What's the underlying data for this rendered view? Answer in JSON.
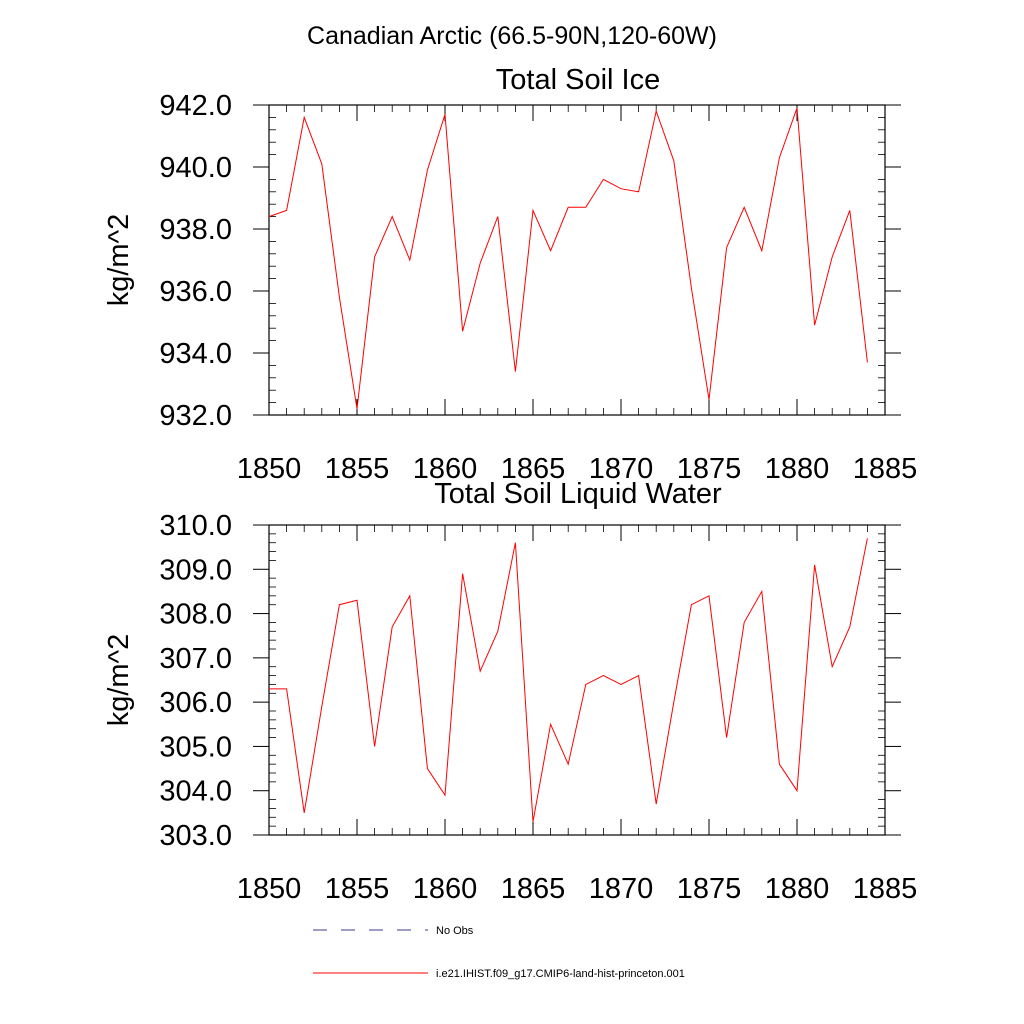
{
  "page_title": "Canadian Arctic (66.5-90N,120-60W)",
  "colors": {
    "model_line": "#ff0000",
    "obs_line": "#3b3b8f",
    "axis": "#000000"
  },
  "legend": {
    "entries": [
      {
        "label": "No Obs",
        "style": "dashed",
        "color": "#3b3b8f"
      },
      {
        "label": "i.e21.IHIST.f09_g17.CMIP6-land-hist-princeton.001",
        "style": "solid",
        "color": "#ff0000"
      }
    ]
  },
  "chart_data": [
    {
      "type": "line",
      "title": "Total Soil Ice",
      "xlabel": "",
      "ylabel": "kg/m^2",
      "xlim": [
        1850,
        1885
      ],
      "ylim": [
        932.0,
        942.0
      ],
      "xticks": [
        "1850",
        "1855",
        "1860",
        "1865",
        "1870",
        "1875",
        "1880",
        "1885"
      ],
      "yticks": [
        "932.0",
        "934.0",
        "936.0",
        "938.0",
        "940.0",
        "942.0"
      ],
      "x": [
        1850,
        1851,
        1852,
        1853,
        1854,
        1855,
        1856,
        1857,
        1858,
        1859,
        1860,
        1861,
        1862,
        1863,
        1864,
        1865,
        1866,
        1867,
        1868,
        1869,
        1870,
        1871,
        1872,
        1873,
        1874,
        1875,
        1876,
        1877,
        1878,
        1879,
        1880,
        1881,
        1882,
        1883,
        1884
      ],
      "series": [
        {
          "name": "i.e21.IHIST.f09_g17.CMIP6-land-hist-princeton.001",
          "values": [
            938.4,
            938.6,
            941.6,
            940.1,
            935.8,
            932.2,
            937.1,
            938.4,
            937.0,
            939.9,
            941.7,
            934.7,
            936.9,
            938.4,
            933.4,
            938.6,
            937.3,
            938.7,
            938.7,
            939.6,
            939.3,
            939.2,
            941.8,
            940.2,
            936.1,
            932.5,
            937.4,
            938.7,
            937.3,
            940.3,
            941.9,
            934.9,
            937.1,
            938.6,
            933.7
          ]
        }
      ]
    },
    {
      "type": "line",
      "title": "Total Soil Liquid Water",
      "xlabel": "",
      "ylabel": "kg/m^2",
      "xlim": [
        1850,
        1885
      ],
      "ylim": [
        303.0,
        310.0
      ],
      "xticks": [
        "1850",
        "1855",
        "1860",
        "1865",
        "1870",
        "1875",
        "1880",
        "1885"
      ],
      "yticks": [
        "303.0",
        "304.0",
        "305.0",
        "306.0",
        "307.0",
        "308.0",
        "309.0",
        "310.0"
      ],
      "x": [
        1850,
        1851,
        1852,
        1853,
        1854,
        1855,
        1856,
        1857,
        1858,
        1859,
        1860,
        1861,
        1862,
        1863,
        1864,
        1865,
        1866,
        1867,
        1868,
        1869,
        1870,
        1871,
        1872,
        1873,
        1874,
        1875,
        1876,
        1877,
        1878,
        1879,
        1880,
        1881,
        1882,
        1883,
        1884
      ],
      "series": [
        {
          "name": "i.e21.IHIST.f09_g17.CMIP6-land-hist-princeton.001",
          "values": [
            306.3,
            306.3,
            303.5,
            305.9,
            308.2,
            308.3,
            305.0,
            307.7,
            308.4,
            304.5,
            303.9,
            308.9,
            306.7,
            307.6,
            309.6,
            303.3,
            305.5,
            304.6,
            306.4,
            306.6,
            306.4,
            306.6,
            303.7,
            306.0,
            308.2,
            308.4,
            305.2,
            307.8,
            308.5,
            304.6,
            304.0,
            309.1,
            306.8,
            307.7,
            309.7
          ]
        }
      ]
    }
  ]
}
